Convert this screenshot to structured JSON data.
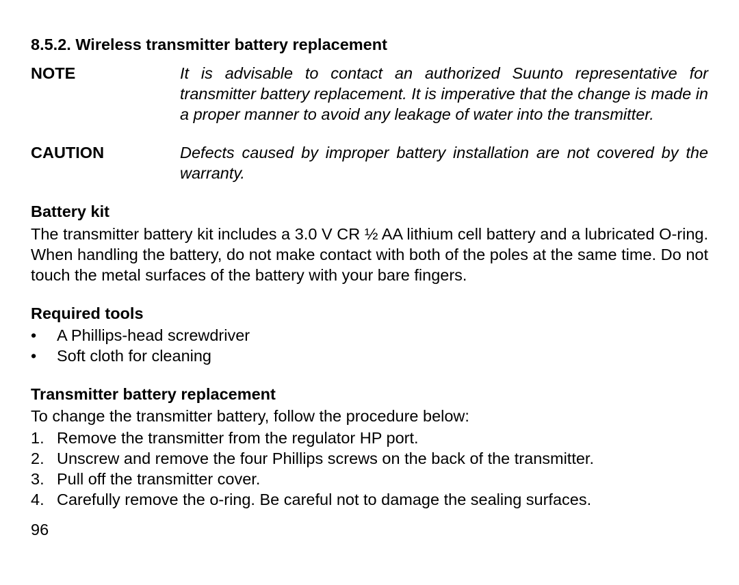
{
  "section_title": "8.5.2. Wireless transmitter battery replacement",
  "note": {
    "label": "NOTE",
    "text": "It is advisable to contact an authorized Suunto representative for transmitter battery replacement. It is imperative that the change is made in a proper manner to avoid any leakage of water into the transmitter."
  },
  "caution": {
    "label": "CAUTION",
    "text": "Defects caused by improper battery installation are not covered by the warranty."
  },
  "battery_kit": {
    "heading": "Battery kit",
    "text": "The transmitter battery kit includes a 3.0 V CR ½ AA lithium cell battery and a lubricated O-ring. When handling the battery, do not make contact with both of the poles at the same time. Do not touch the metal surfaces of the battery with your bare fingers."
  },
  "required_tools": {
    "heading": "Required tools",
    "items": [
      "A Phillips-head screwdriver",
      "Soft cloth for cleaning"
    ]
  },
  "replacement": {
    "heading": "Transmitter battery replacement",
    "intro": "To change the transmitter battery, follow the procedure below:",
    "steps": [
      "Remove the transmitter from the regulator HP port.",
      "Unscrew and remove the four Phillips screws on the back of the transmitter.",
      "Pull off the transmitter cover.",
      "Carefully remove the o-ring. Be careful not to damage the sealing surfaces."
    ]
  },
  "page_number": "96",
  "bullet_glyph": "•",
  "step_numbers": [
    "1.",
    "2.",
    "3.",
    "4."
  ]
}
